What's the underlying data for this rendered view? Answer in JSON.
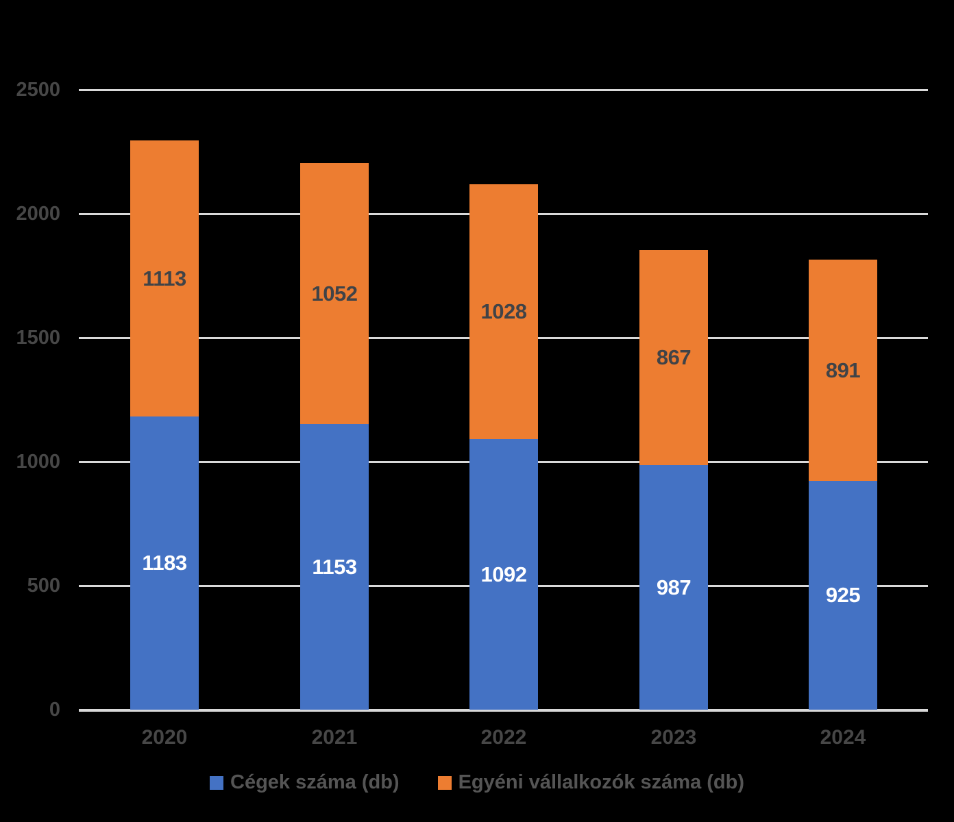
{
  "chart_data": {
    "type": "bar",
    "stacked": true,
    "title": "",
    "xlabel": "",
    "ylabel": "",
    "categories": [
      "2020",
      "2021",
      "2022",
      "2023",
      "2024"
    ],
    "series": [
      {
        "name": "Cégek száma (db)",
        "color": "#4472C4",
        "label_color": "#FFFFFF",
        "values": [
          1183,
          1153,
          1092,
          987,
          925
        ]
      },
      {
        "name": "Egyéni vállalkozók száma (db)",
        "color": "#ED7D31",
        "label_color": "#404347",
        "values": [
          1113,
          1052,
          1028,
          867,
          891
        ]
      }
    ],
    "y_ticks": [
      0,
      500,
      1000,
      1500,
      2000,
      2500
    ],
    "ylim": [
      0,
      2500
    ],
    "grid": true,
    "gridline_color": "#D9D9D9",
    "axis_text_color": "#474747",
    "background_color": "#000000",
    "legend_position": "bottom"
  }
}
